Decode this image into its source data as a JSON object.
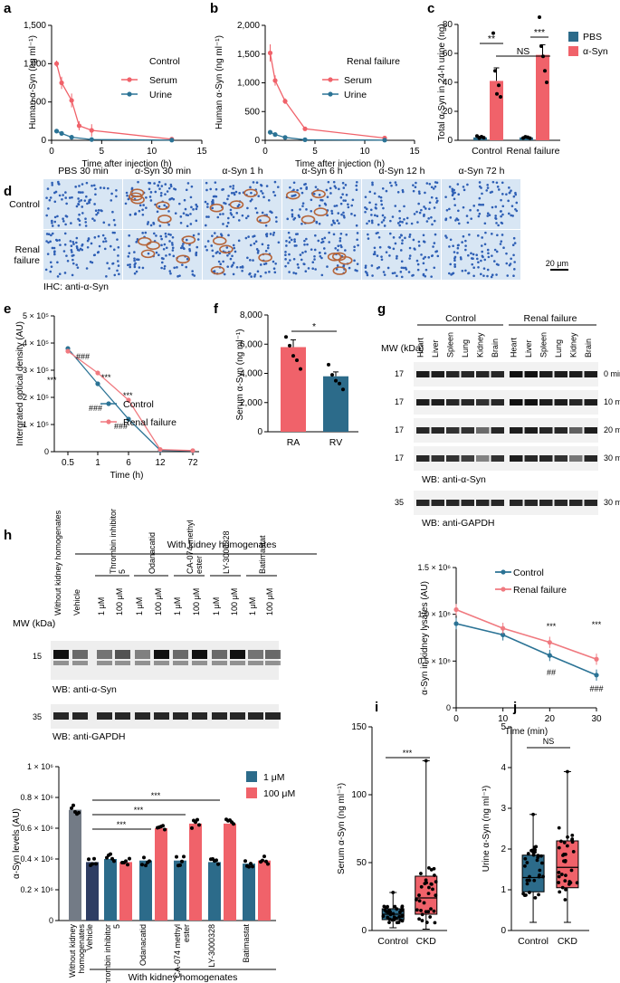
{
  "colors": {
    "serum": "#f0626a",
    "urine": "#2b7395",
    "pbs": "#2c6b8a",
    "asyn": "#f0626a",
    "control": "#2b7395",
    "renal": "#f07a80",
    "gray": "#737b86",
    "navy": "#2e3d63",
    "teal": "#2c6b8a",
    "red": "#f0626a",
    "stainBg": "#d8e6f4",
    "stainNucleus": "#2e5fb5",
    "stainBrown": "#b5653a"
  },
  "labels": {
    "a": "a",
    "b": "b",
    "c": "c",
    "d": "d",
    "e": "e",
    "f": "f",
    "g": "g",
    "h": "h",
    "i": "i",
    "j": "j"
  },
  "chart_data": [
    {
      "id": "a",
      "type": "line",
      "ylabel": "Human α-Syn (ng ml⁻¹)",
      "xlabel": "Time after injection (h)",
      "xlim": [
        0,
        15
      ],
      "ylim": [
        0,
        1500
      ],
      "xticks": [
        "0",
        "5",
        "10",
        "15"
      ],
      "yticks": [
        "0",
        "500",
        "1,000",
        "1,500"
      ],
      "legend_title": "Control",
      "series": [
        {
          "name": "Serum",
          "x": [
            0.5,
            1,
            2,
            2.75,
            4,
            12
          ],
          "y": [
            1000,
            750,
            520,
            190,
            130,
            15
          ],
          "err": [
            40,
            80,
            90,
            60,
            80,
            5
          ]
        },
        {
          "name": "Urine",
          "x": [
            0.5,
            1,
            2,
            4,
            12
          ],
          "y": [
            120,
            90,
            40,
            10,
            3
          ],
          "err": [
            20,
            15,
            10,
            5,
            2
          ]
        }
      ]
    },
    {
      "id": "b",
      "type": "line",
      "ylabel": "Human α-Syn (ng ml⁻¹)",
      "xlabel": "Time after injection (h)",
      "xlim": [
        0,
        15
      ],
      "ylim": [
        0,
        2000
      ],
      "xticks": [
        "0",
        "5",
        "10",
        "15"
      ],
      "yticks": [
        "0",
        "500",
        "1,000",
        "1,500",
        "2,000"
      ],
      "legend_title": "Renal failure",
      "series": [
        {
          "name": "Serum",
          "x": [
            0.5,
            1,
            2,
            4,
            12
          ],
          "y": [
            1520,
            1040,
            680,
            200,
            40
          ],
          "err": [
            150,
            90,
            50,
            10,
            5
          ]
        },
        {
          "name": "Urine",
          "x": [
            0.5,
            1,
            2,
            4,
            12
          ],
          "y": [
            140,
            100,
            50,
            10,
            3
          ],
          "err": [
            20,
            15,
            10,
            5,
            2
          ]
        }
      ]
    },
    {
      "id": "c",
      "type": "bar",
      "ylabel": "Total α-Syn in 24-h urine (ng)",
      "categories": [
        "Control",
        "Renal failure"
      ],
      "ylim": [
        0,
        80
      ],
      "yticks": [
        "0",
        "20",
        "40",
        "60",
        "80"
      ],
      "series": [
        {
          "name": "PBS",
          "values": [
            2,
            2
          ],
          "err": [
            0.8,
            0.8
          ]
        },
        {
          "name": "α-Syn",
          "values": [
            41,
            59
          ],
          "err": [
            9,
            7
          ]
        }
      ],
      "annotations": [
        "**",
        "***",
        "NS"
      ]
    },
    {
      "id": "e",
      "type": "line",
      "ylabel": "Intergrated optical density (AU)",
      "xlabel": "Time (h)",
      "categories": [
        "0.5",
        "1",
        "6",
        "12",
        "72"
      ],
      "ylim": [
        0,
        500000.0
      ],
      "yticks": [
        "0",
        "1 × 10⁵",
        "2 × 10⁵",
        "3 × 10⁵",
        "4 × 10⁵",
        "5 × 10⁵"
      ],
      "series": [
        {
          "name": "Control",
          "values": [
            380000,
            250000,
            120000,
            5000,
            3000
          ]
        },
        {
          "name": "Renal failure",
          "values": [
            370000,
            290000,
            190000,
            8000,
            4000
          ]
        }
      ],
      "annotations": [
        "###",
        "***",
        "***",
        "###",
        "***",
        "###"
      ]
    },
    {
      "id": "f",
      "type": "bar",
      "ylabel": "Serum α-Syn (ng ml⁻¹)",
      "categories": [
        "RA",
        "RV"
      ],
      "ylim": [
        0,
        8000
      ],
      "yticks": [
        "0",
        "2,000",
        "4,000",
        "6,000",
        "8,000"
      ],
      "values": [
        5800,
        3800
      ],
      "err": [
        500,
        300
      ],
      "annotations": [
        "*"
      ]
    },
    {
      "id": "g-right",
      "type": "line",
      "ylabel": "α-Syn in kidney lysates (AU)",
      "xlabel": "Time (min)",
      "xlim": [
        0,
        30
      ],
      "ylim": [
        0,
        1500000.0
      ],
      "xticks": [
        "0",
        "10",
        "20",
        "30"
      ],
      "yticks": [
        "0",
        "0.5 × 10⁶",
        "1.0 × 10⁶",
        "1.5 × 10⁶"
      ],
      "series": [
        {
          "name": "Control",
          "x": [
            0,
            10,
            20,
            30
          ],
          "y": [
            900000,
            780000,
            560000,
            350000
          ]
        },
        {
          "name": "Renal failure",
          "x": [
            0,
            10,
            20,
            30
          ],
          "y": [
            1050000,
            850000,
            700000,
            520000
          ]
        }
      ],
      "annotations": [
        "***",
        "***",
        "##",
        "###"
      ]
    },
    {
      "id": "h-bottom",
      "type": "bar",
      "ylabel": "α-Syn levels (AU)",
      "ylim": [
        0,
        1000000.0
      ],
      "yticks": [
        "0",
        "0.2 × 10⁶",
        "0.4 × 10⁶",
        "0.6 × 10⁶",
        "0.8 × 10⁶",
        "1 × 10⁶"
      ],
      "categories": [
        "Without kidney homogenates",
        "Vehicle",
        "Thrombin inhibitor 5",
        "Odanacatid",
        "CA-074 methyl ester",
        "LY-3000328",
        "Batimastat"
      ],
      "series": [
        {
          "name": "1 μM",
          "values": [
            null,
            null,
            400000,
            390000,
            390000,
            380000,
            370000
          ]
        },
        {
          "name": "100 μM",
          "values": [
            null,
            null,
            380000,
            600000,
            630000,
            630000,
            390000
          ]
        }
      ],
      "single": {
        "Without kidney homogenates": 720000,
        "Vehicle": 380000
      },
      "group_label": "With kidney homogenates",
      "annotations": [
        "***",
        "***",
        "***"
      ]
    },
    {
      "id": "i",
      "type": "box",
      "ylabel": "Serum α-Syn (ng ml⁻¹)",
      "categories": [
        "Control",
        "CKD"
      ],
      "ylim": [
        0,
        150
      ],
      "yticks": [
        "0",
        "50",
        "100",
        "150"
      ],
      "boxes": [
        {
          "min": 2,
          "q1": 8,
          "median": 12,
          "q3": 16,
          "max": 28
        },
        {
          "min": 1,
          "q1": 12,
          "median": 24,
          "q3": 40,
          "max": 125
        }
      ],
      "annotations": [
        "***"
      ]
    },
    {
      "id": "j",
      "type": "box",
      "ylabel": "Urine α-Syn (ng ml⁻¹)",
      "categories": [
        "Control",
        "CKD"
      ],
      "ylim": [
        0,
        5
      ],
      "yticks": [
        "0",
        "1",
        "2",
        "3",
        "4",
        "5"
      ],
      "boxes": [
        {
          "min": 0.2,
          "q1": 0.95,
          "median": 1.3,
          "q3": 1.85,
          "max": 2.85
        },
        {
          "min": 0.2,
          "q1": 1.05,
          "median": 1.55,
          "q3": 2.2,
          "max": 3.9
        }
      ],
      "annotations": [
        "NS"
      ]
    }
  ],
  "panel_d": {
    "columns": [
      "PBS 30 min",
      "α-Syn 30 min",
      "α-Syn 1 h",
      "α-Syn 6 h",
      "α-Syn 12 h",
      "α-Syn 72 h"
    ],
    "rows": [
      "Control",
      "Renal\nfailure"
    ],
    "scale": "20 μm",
    "caption": "IHC: anti-α-Syn"
  },
  "panel_g": {
    "groups": [
      "Control",
      "Renal failure"
    ],
    "lanes": [
      "Heart",
      "Liver",
      "Spleen",
      "Lung",
      "Kidney",
      "Brain"
    ],
    "mw_label": "MW (kDa)",
    "rows": [
      {
        "mw": "17",
        "time": "0 min"
      },
      {
        "mw": "17",
        "time": "10 min"
      },
      {
        "mw": "17",
        "time": "20 min"
      },
      {
        "mw": "17",
        "time": "30 min"
      }
    ],
    "wb1": "WB: anti-α-Syn",
    "gapdh": {
      "mw": "35",
      "time": "30 min"
    },
    "wb2": "WB: anti-GAPDH"
  },
  "panel_h": {
    "title": "With kidney homogenates",
    "lanes": [
      "Without kidney homogenates",
      "Vehicle",
      "1 μM",
      "100 μM",
      "1 μM",
      "100 μM",
      "1 μM",
      "100 μM",
      "1 μM",
      "100 μM",
      "1 μM",
      "100 μM"
    ],
    "groups": [
      "Thrombin inhibitor 5",
      "Odanacatid",
      "CA-074 methyl ester",
      "LY-3000328",
      "Batimastat"
    ],
    "mw_label": "MW (kDa)",
    "blot1_mw": "15",
    "wb1": "WB: anti-α-Syn",
    "blot2_mw": "35",
    "wb2": "WB: anti-GAPDH"
  }
}
